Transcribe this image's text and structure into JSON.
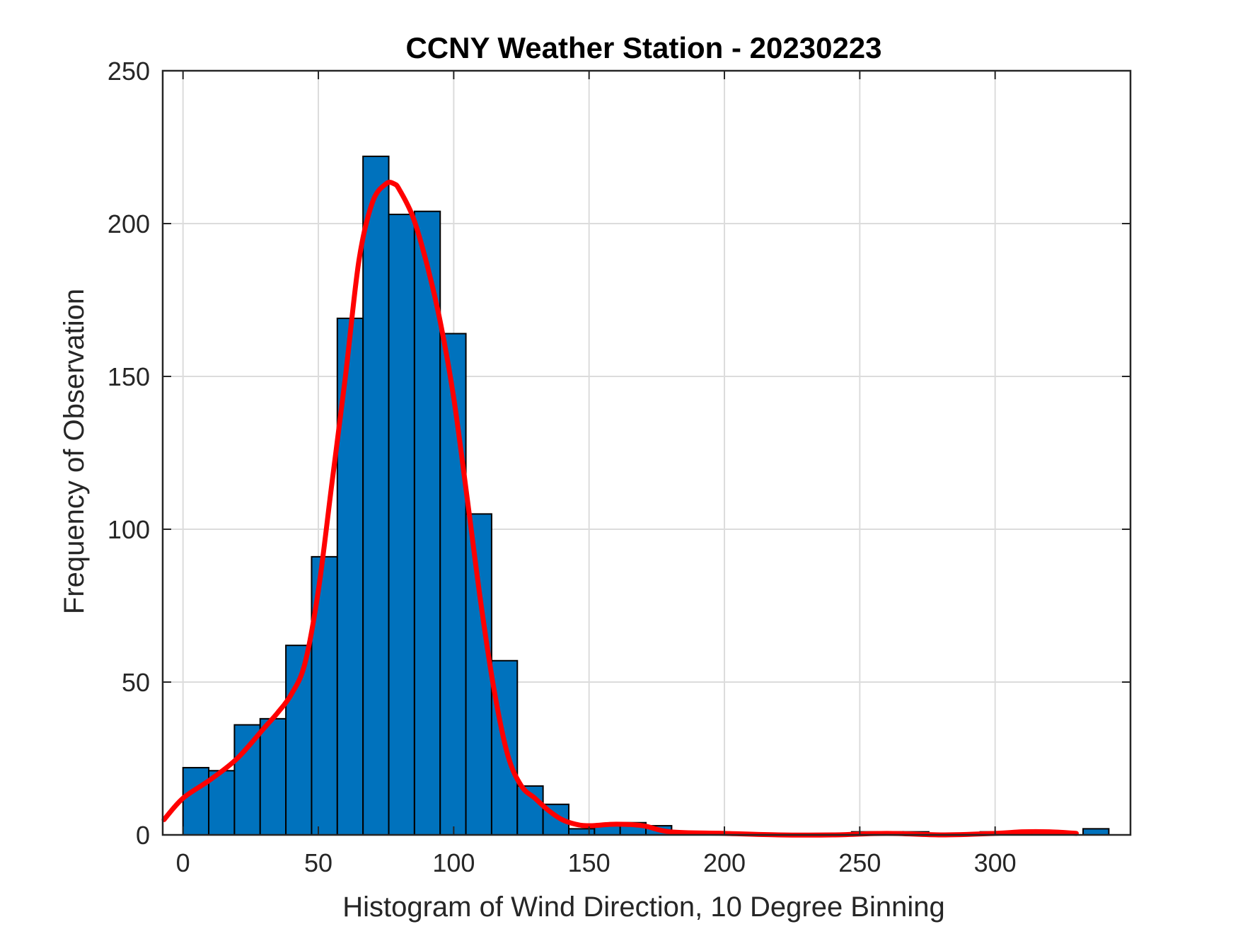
{
  "chart_data": {
    "type": "bar",
    "title": "CCNY Weather Station - 20230223",
    "xlabel": "Histogram of Wind Direction, 10 Degree Binning",
    "ylabel": "Frequency of Observation",
    "xlim": [
      -7.5,
      350
    ],
    "ylim": [
      0,
      250
    ],
    "xticks": [
      0,
      50,
      100,
      150,
      200,
      250,
      300
    ],
    "yticks": [
      0,
      50,
      100,
      150,
      200,
      250
    ],
    "grid": true,
    "bin_width": 9.5,
    "bins": [
      {
        "start": 0,
        "value": 22
      },
      {
        "start": 9.5,
        "value": 21
      },
      {
        "start": 19,
        "value": 36
      },
      {
        "start": 28.5,
        "value": 38
      },
      {
        "start": 38,
        "value": 62
      },
      {
        "start": 47.5,
        "value": 91
      },
      {
        "start": 57,
        "value": 169
      },
      {
        "start": 66.5,
        "value": 222
      },
      {
        "start": 76,
        "value": 203
      },
      {
        "start": 85.5,
        "value": 204
      },
      {
        "start": 95,
        "value": 164
      },
      {
        "start": 104.5,
        "value": 105
      },
      {
        "start": 114,
        "value": 57
      },
      {
        "start": 123.5,
        "value": 16
      },
      {
        "start": 133,
        "value": 10
      },
      {
        "start": 142.5,
        "value": 2
      },
      {
        "start": 152,
        "value": 3
      },
      {
        "start": 161.5,
        "value": 4
      },
      {
        "start": 171,
        "value": 3
      },
      {
        "start": 180.5,
        "value": 1
      },
      {
        "start": 190,
        "value": 1
      },
      {
        "start": 199.5,
        "value": 0
      },
      {
        "start": 209,
        "value": 0
      },
      {
        "start": 218.5,
        "value": 0
      },
      {
        "start": 228,
        "value": 0
      },
      {
        "start": 237.5,
        "value": 0
      },
      {
        "start": 247,
        "value": 1
      },
      {
        "start": 256.5,
        "value": 1
      },
      {
        "start": 266,
        "value": 1
      },
      {
        "start": 275.5,
        "value": 0
      },
      {
        "start": 285,
        "value": 0
      },
      {
        "start": 294.5,
        "value": 1
      },
      {
        "start": 304,
        "value": 1
      },
      {
        "start": 313.5,
        "value": 1
      },
      {
        "start": 323,
        "value": 0
      },
      {
        "start": 332.5,
        "value": 2
      }
    ],
    "curve": {
      "color": "#ff0000",
      "x": [
        -7,
        0,
        10,
        20,
        30,
        35,
        40,
        45,
        50,
        55,
        60,
        65,
        70,
        75,
        78,
        80,
        85,
        90,
        95,
        100,
        105,
        110,
        115,
        120,
        125,
        130,
        135,
        140,
        145,
        150,
        160,
        170,
        180,
        200,
        220,
        240,
        260,
        280,
        300,
        310,
        320,
        330
      ],
      "y": [
        5,
        12,
        18,
        25,
        35,
        40,
        46,
        56,
        80,
        115,
        150,
        188,
        207,
        213,
        213,
        211,
        202,
        187,
        168,
        143,
        110,
        76,
        47,
        26,
        16,
        12,
        8,
        5,
        3.5,
        3,
        3.5,
        3,
        1,
        0.5,
        0,
        0,
        0.5,
        0,
        0.5,
        1,
        1,
        0.5
      ]
    },
    "colors": {
      "bar_fill": "#0072bd",
      "bar_edge": "#000000",
      "grid": "#dcdcdc",
      "axis": "#262626"
    }
  }
}
